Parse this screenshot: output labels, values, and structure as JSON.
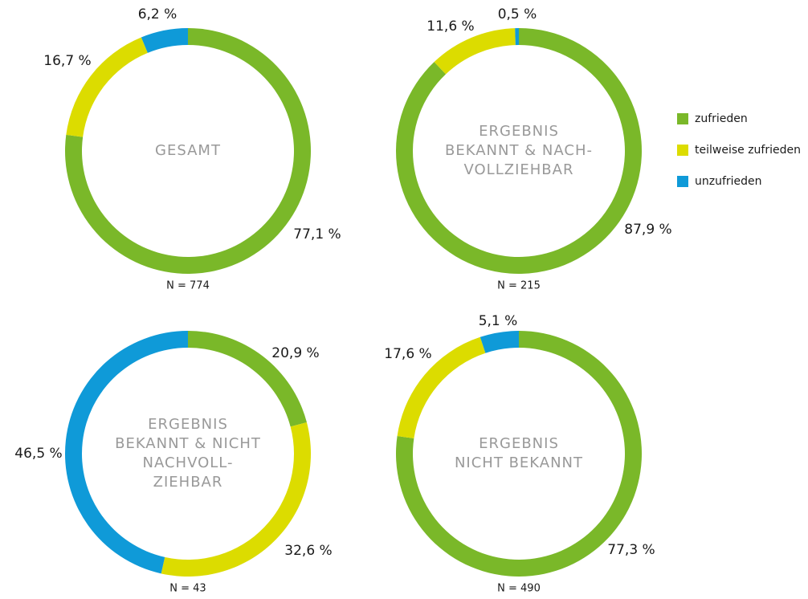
{
  "legend": {
    "labels": [
      "zufrieden",
      "teilweise zufrieden",
      "unzufrieden"
    ],
    "colors": [
      "#7ab829",
      "#dcdc00",
      "#0f9ad8"
    ]
  },
  "chart_data": [
    {
      "type": "donut",
      "title": [
        "GESAMT"
      ],
      "values": [
        77.1,
        16.7,
        6.2
      ],
      "value_labels": [
        "77,1 %",
        "16,7 %",
        "6,2 %"
      ],
      "note": "N = 774"
    },
    {
      "type": "donut",
      "title": [
        "ERGEBNIS",
        "BEKANNT & NACH-",
        "VOLLZIEHBAR"
      ],
      "values": [
        87.9,
        11.6,
        0.5
      ],
      "value_labels": [
        "87,9 %",
        "11,6 %",
        "0,5 %"
      ],
      "note": "N = 215"
    },
    {
      "type": "donut",
      "title": [
        "ERGEBNIS",
        "BEKANNT & NICHT",
        "NACHVOLL-",
        "ZIEHBAR"
      ],
      "values": [
        20.9,
        32.6,
        46.5
      ],
      "value_labels": [
        "20,9 %",
        "32,6 %",
        "46,5 %"
      ],
      "note": "N = 43"
    },
    {
      "type": "donut",
      "title": [
        "ERGEBNIS",
        "NICHT BEKANNT"
      ],
      "values": [
        77.3,
        17.6,
        5.1
      ],
      "value_labels": [
        "77,3 %",
        "17,6 %",
        "5,1 %"
      ],
      "note": "N = 490"
    }
  ]
}
